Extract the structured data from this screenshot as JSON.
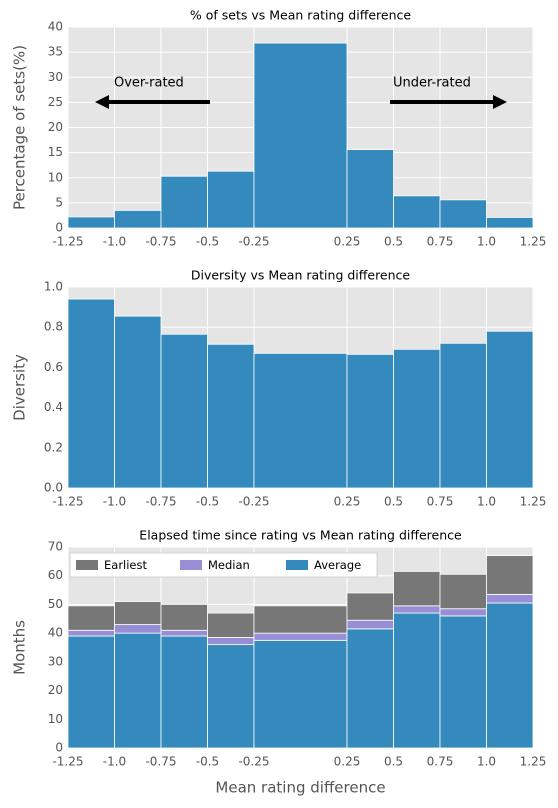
{
  "chart_data": [
    {
      "type": "histogram",
      "title": "% of sets vs Mean rating difference",
      "y_label": "Percentage of sets(%)",
      "bins": [
        -1.25,
        -1.0,
        -0.75,
        -0.5,
        -0.25,
        0.25,
        0.5,
        0.75,
        1.0,
        1.25
      ],
      "values": [
        2.2,
        3.5,
        10.3,
        11.3,
        36.8,
        15.6,
        6.4,
        5.6,
        2.1
      ],
      "color": "#348abd",
      "xlim": [
        -1.25,
        1.25
      ],
      "xticks": [
        -1.25,
        {
          "value": -1.0,
          "label": "-1.0"
        },
        -0.75,
        -0.5,
        -0.25,
        0.25,
        0.5,
        0.75,
        {
          "value": 1.0,
          "label": "1.0"
        },
        1.25
      ],
      "ylim": [
        0,
        40
      ],
      "yticks": [
        0,
        5,
        10,
        15,
        20,
        25,
        30,
        35,
        40
      ],
      "grid": true,
      "annotations": [
        "Over-rated",
        "Under-rated"
      ]
    },
    {
      "type": "histogram",
      "title": "Diversity vs Mean rating difference",
      "y_label": "Diversity",
      "bins": [
        -1.25,
        -1.0,
        -0.75,
        -0.5,
        -0.25,
        0.25,
        0.5,
        0.75,
        1.0,
        1.25
      ],
      "values": [
        0.94,
        0.855,
        0.765,
        0.715,
        0.67,
        0.665,
        0.69,
        0.72,
        0.78
      ],
      "color": "#348abd",
      "xlim": [
        -1.25,
        1.25
      ],
      "xticks": [
        -1.25,
        {
          "value": -1.0,
          "label": "-1.0"
        },
        -0.75,
        -0.5,
        -0.25,
        0.25,
        0.5,
        0.75,
        {
          "value": 1.0,
          "label": "1.0"
        },
        1.25
      ],
      "ylim": [
        0,
        1.0
      ],
      "yticks": [
        {
          "value": 0,
          "label": "0.0"
        },
        0.2,
        0.4,
        0.6,
        0.8,
        {
          "value": 1.0,
          "label": "1.0"
        }
      ],
      "grid": true
    },
    {
      "type": "histogram",
      "title": "Elapsed time since rating vs Mean rating difference",
      "y_label": "Months",
      "x_label": "Mean rating difference",
      "bins": [
        -1.25,
        -1.0,
        -0.75,
        -0.5,
        -0.25,
        0.25,
        0.5,
        0.75,
        1.0,
        1.25
      ],
      "series": [
        {
          "name": "Earliest",
          "color": "#777777",
          "values": [
            8.5,
            8,
            9,
            8.5,
            9.5,
            9.5,
            12,
            12,
            13.5
          ]
        },
        {
          "name": "Median",
          "color": "#988ed5",
          "values": [
            2,
            3,
            2,
            2.5,
            2.5,
            3,
            2.5,
            2.5,
            3
          ]
        },
        {
          "name": "Average",
          "color": "#348abd",
          "values": [
            39,
            40,
            39,
            36,
            37.5,
            41.5,
            47,
            46,
            50.5
          ]
        }
      ],
      "stacked": true,
      "legend": "upper left",
      "xlim": [
        -1.25,
        1.25
      ],
      "xticks": [
        -1.25,
        {
          "value": -1.0,
          "label": "-1.0"
        },
        -0.75,
        -0.5,
        -0.25,
        0.25,
        0.5,
        0.75,
        {
          "value": 1.0,
          "label": "1.0"
        },
        1.25
      ],
      "ylim": [
        0,
        70
      ],
      "yticks": [
        0,
        10,
        20,
        30,
        40,
        50,
        60,
        70
      ],
      "grid": true
    }
  ]
}
